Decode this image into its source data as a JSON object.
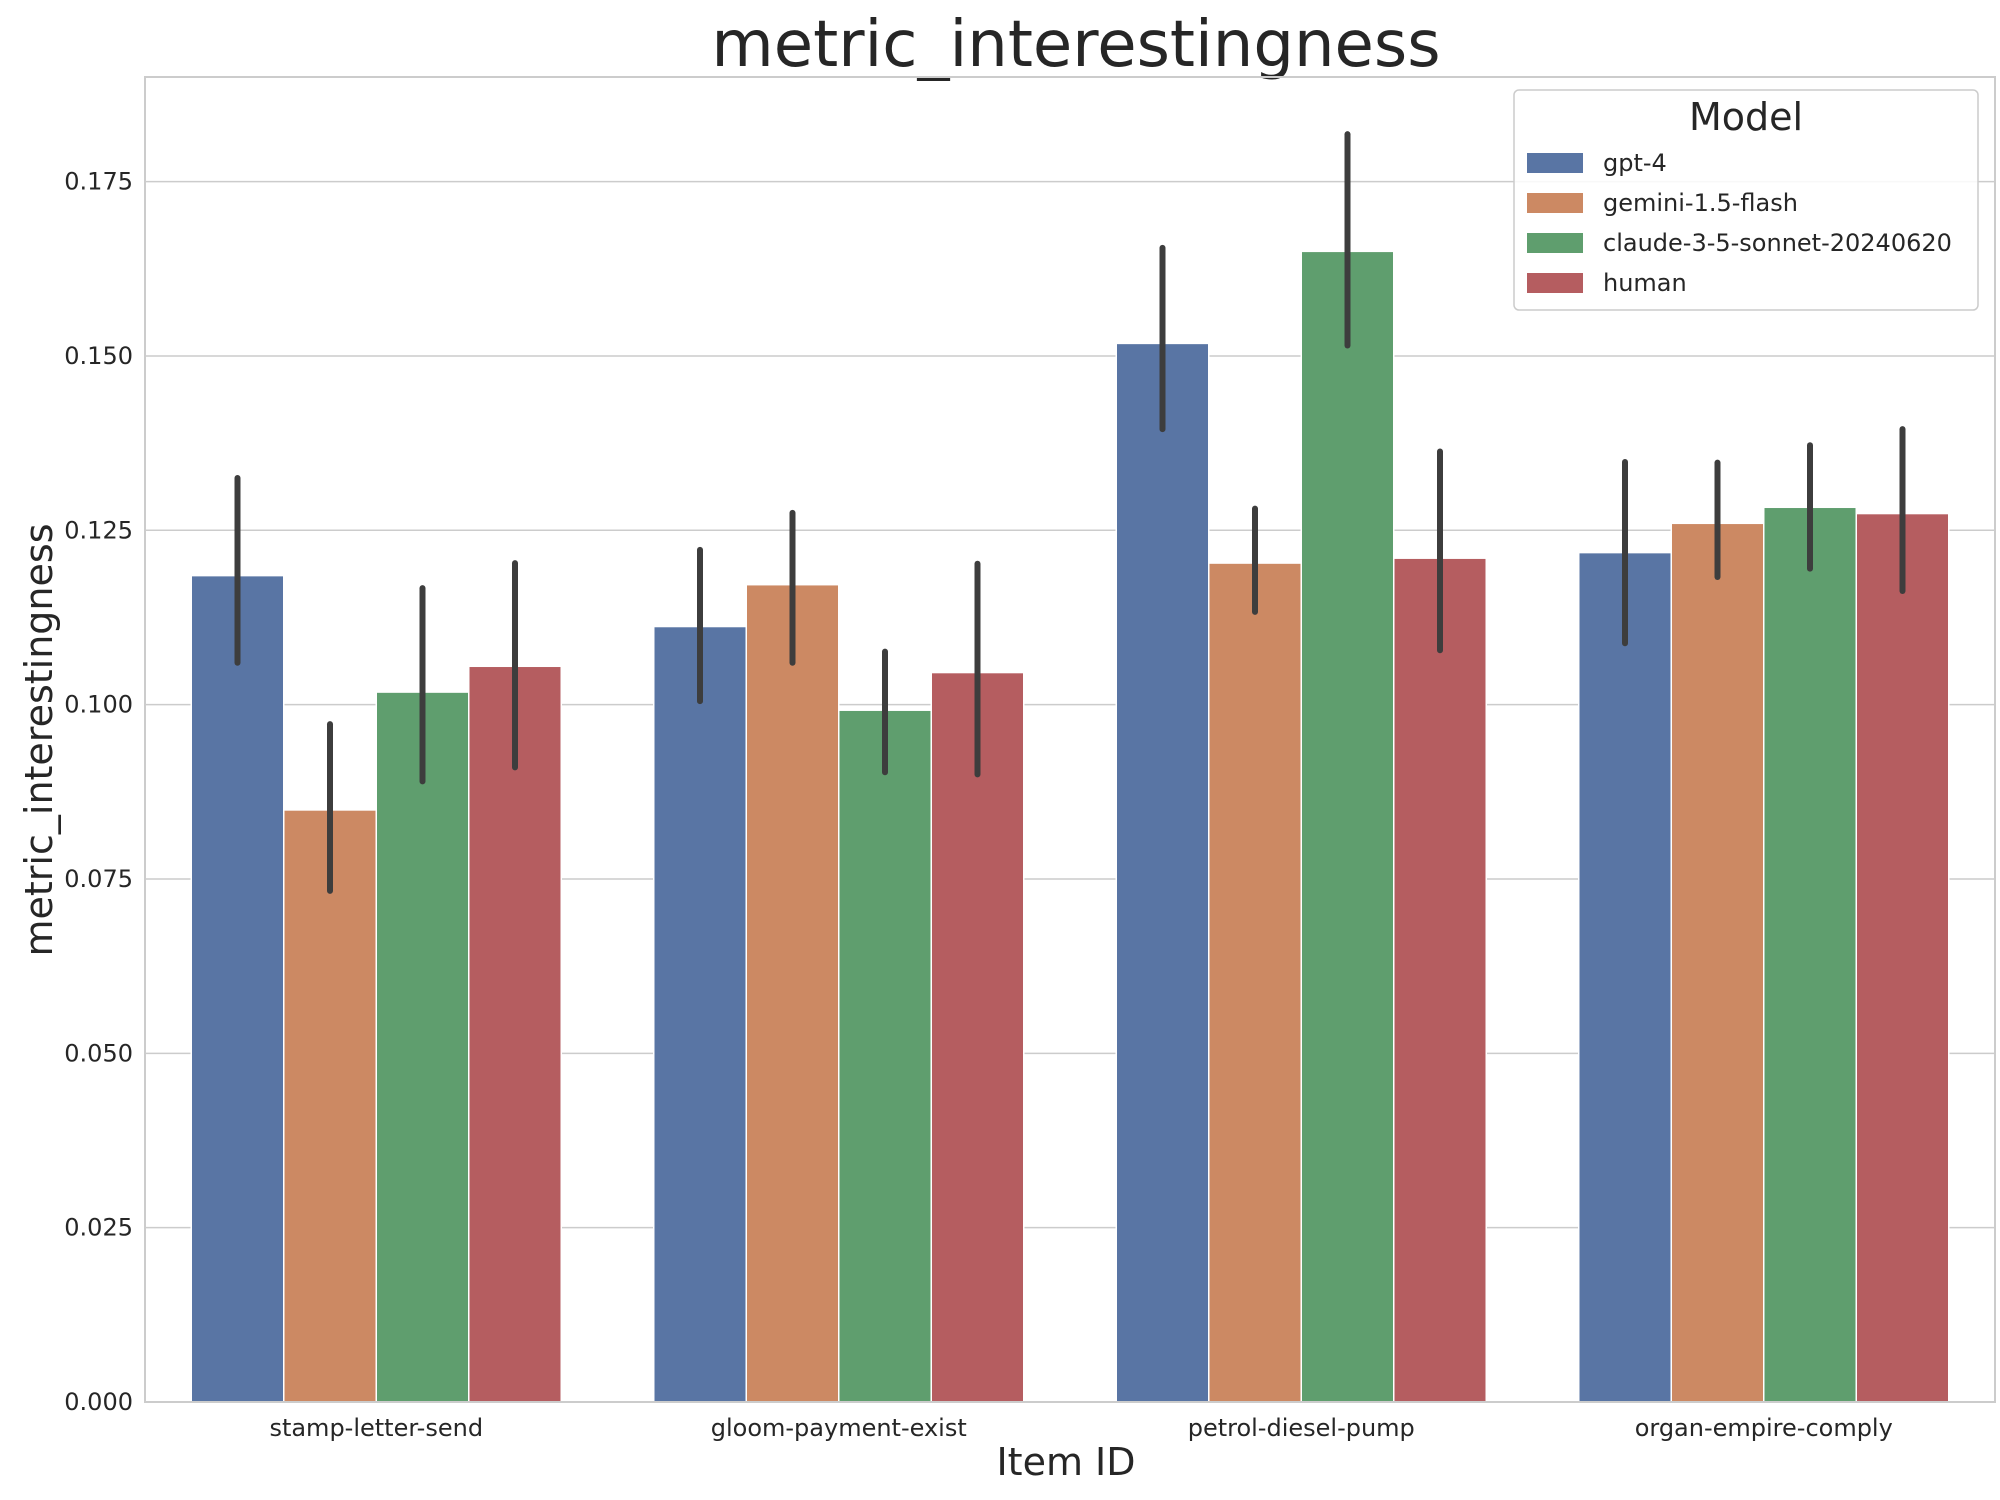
{
  "chart_data": {
    "type": "bar",
    "title": "metric_interestingness",
    "xlabel": "Item ID",
    "ylabel": "metric_interestingness",
    "ylim": [
      0,
      0.19
    ],
    "yticks": [
      "0.000",
      "0.025",
      "0.050",
      "0.075",
      "0.100",
      "0.125",
      "0.150",
      "0.175"
    ],
    "grid": "horizontal",
    "legend": {
      "title": "Model",
      "placement": "top-right"
    },
    "categories": [
      "stamp-letter-send",
      "gloom-payment-exist",
      "petrol-diesel-pump",
      "organ-empire-comply"
    ],
    "series": [
      {
        "name": "gpt-4",
        "color": "#5975a4",
        "values": [
          0.1185,
          0.1112,
          0.1518,
          0.1218
        ],
        "ci_low": [
          0.106,
          0.1005,
          0.1395,
          0.1088
        ],
        "ci_high": [
          0.1325,
          0.1222,
          0.1655,
          0.1348
        ]
      },
      {
        "name": "gemini-1.5-flash",
        "color": "#cc8963",
        "values": [
          0.0849,
          0.1172,
          0.1203,
          0.126
        ],
        "ci_low": [
          0.0733,
          0.106,
          0.1133,
          0.1183
        ],
        "ci_high": [
          0.0972,
          0.1275,
          0.1281,
          0.1347
        ]
      },
      {
        "name": "claude-3-5-sonnet-20240620",
        "color": "#5f9e6e",
        "values": [
          0.1018,
          0.0992,
          0.165,
          0.1283
        ],
        "ci_low": [
          0.089,
          0.0903,
          0.1515,
          0.1195
        ],
        "ci_high": [
          0.1167,
          0.1076,
          0.1818,
          0.1372
        ]
      },
      {
        "name": "human",
        "color": "#b55d60",
        "values": [
          0.1055,
          0.1046,
          0.121,
          0.1274
        ],
        "ci_low": [
          0.091,
          0.09,
          0.1078,
          0.1163
        ],
        "ci_high": [
          0.1203,
          0.1202,
          0.1363,
          0.1395
        ]
      }
    ]
  }
}
